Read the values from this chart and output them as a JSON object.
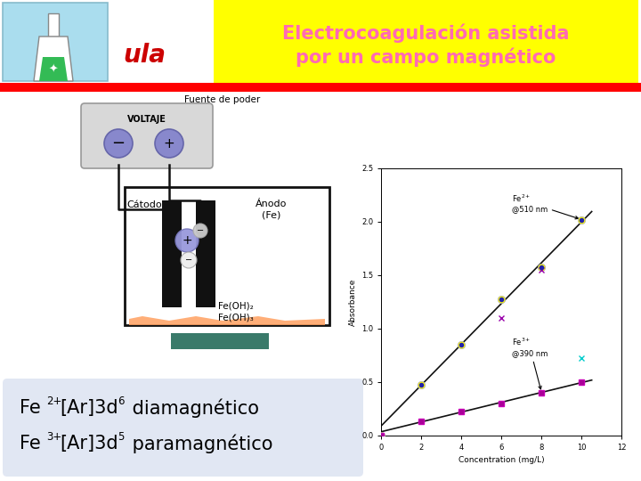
{
  "title_line1": "Electrocoagulación asistida",
  "title_line2": "por un campo magnético",
  "title_color": "#FF69B4",
  "title_bg": "#FFFF00",
  "red_bar_color": "#FF0000",
  "ula_color": "#CC0000",
  "voltaje_label": "VOLTAJE",
  "fuente_label": "Fuente de poder",
  "catodo_label": "Cátodo",
  "anodo_label": "Ánodo\n(Fe)",
  "electrode_color": "#111111",
  "tank_color": "#111111",
  "orange_color": "#FFA060",
  "teal_color": "#3a7a6a",
  "wire_color": "#111111",
  "graph_xlabel": "Concentration (mg/L)",
  "graph_ylabel": "Absorbance",
  "graph_label1": "Fe2+\n@510 nm",
  "graph_label2": "Fe3+\n@390 nm",
  "fe2_conc": [
    0,
    2,
    4,
    6,
    8,
    10
  ],
  "fe2_abs": [
    0.0,
    0.47,
    0.85,
    1.27,
    1.57,
    2.02
  ],
  "fe3_conc": [
    0,
    2,
    4,
    6,
    8,
    10
  ],
  "fe3_abs": [
    0.0,
    0.13,
    0.22,
    0.3,
    0.4,
    0.5
  ],
  "fe2_dot_color": "#FFFF00",
  "fe3_dot_color": "#CC00CC",
  "line_color": "#111111"
}
